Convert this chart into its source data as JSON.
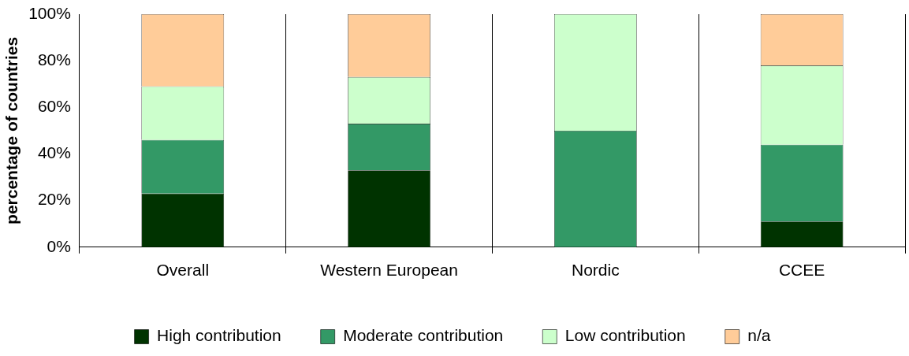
{
  "chart_data": {
    "type": "bar",
    "stacked": true,
    "ylabel": "percentage of countries",
    "categories": [
      "Overall",
      "Western European",
      "Nordic",
      "CCEE"
    ],
    "series": [
      {
        "name": "High contribution",
        "color": "#003300",
        "values": [
          23,
          33,
          0,
          11
        ]
      },
      {
        "name": "Moderate contribution",
        "color": "#339966",
        "values": [
          23,
          20,
          50,
          33
        ]
      },
      {
        "name": "Low contribution",
        "color": "#ccffcc",
        "values": [
          23,
          20,
          50,
          34
        ]
      },
      {
        "name": "n/a",
        "color": "#ffcc99",
        "values": [
          31,
          27,
          0,
          22
        ]
      }
    ],
    "ylim": [
      0,
      100
    ],
    "yticks": [
      {
        "value": 0,
        "label": "0%"
      },
      {
        "value": 20,
        "label": "20%"
      },
      {
        "value": 40,
        "label": "40%"
      },
      {
        "value": 60,
        "label": "60%"
      },
      {
        "value": 80,
        "label": "80%"
      },
      {
        "value": 100,
        "label": "100%"
      }
    ],
    "grid": "x",
    "legend": "bottom"
  }
}
